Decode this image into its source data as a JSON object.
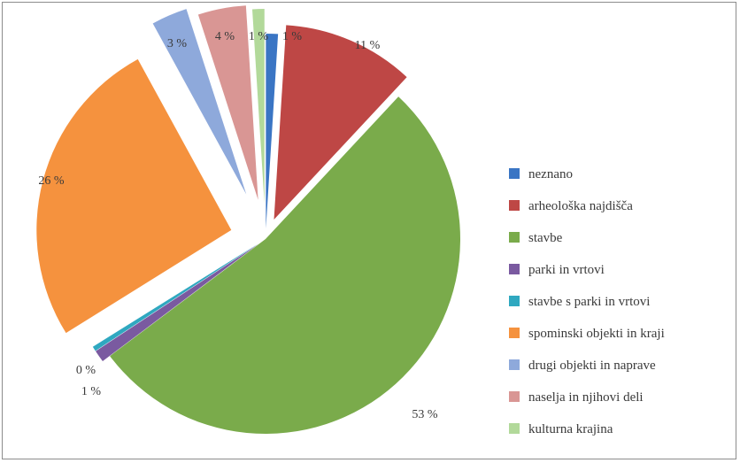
{
  "chart_data": {
    "type": "pie",
    "legend_position": "right",
    "slices": [
      {
        "name": "neznano",
        "value": 1,
        "label": "1 %",
        "color": "#3a75c4"
      },
      {
        "name": "arheološka najdišča",
        "value": 11,
        "label": "11 %",
        "color": "#be4745"
      },
      {
        "name": "stavbe",
        "value": 53,
        "label": "53 %",
        "color": "#7aab4b"
      },
      {
        "name": "parki in vrtovi",
        "value": 1,
        "label": "1 %",
        "color": "#7a5aa0"
      },
      {
        "name": "stavbe s parki in vrtovi",
        "value": 0.4,
        "label": "0 %",
        "color": "#2fa8c0"
      },
      {
        "name": "spominski objekti in kraji",
        "value": 26,
        "label": "26 %",
        "color": "#f5923e"
      },
      {
        "name": "drugi objekti in naprave",
        "value": 3,
        "label": "3 %",
        "color": "#8ea9db"
      },
      {
        "name": "naselja in njihovi deli",
        "value": 4,
        "label": "4 %",
        "color": "#d99694"
      },
      {
        "name": "kulturna krajina",
        "value": 1,
        "label": "1 %",
        "color": "#b2d99a"
      }
    ]
  }
}
